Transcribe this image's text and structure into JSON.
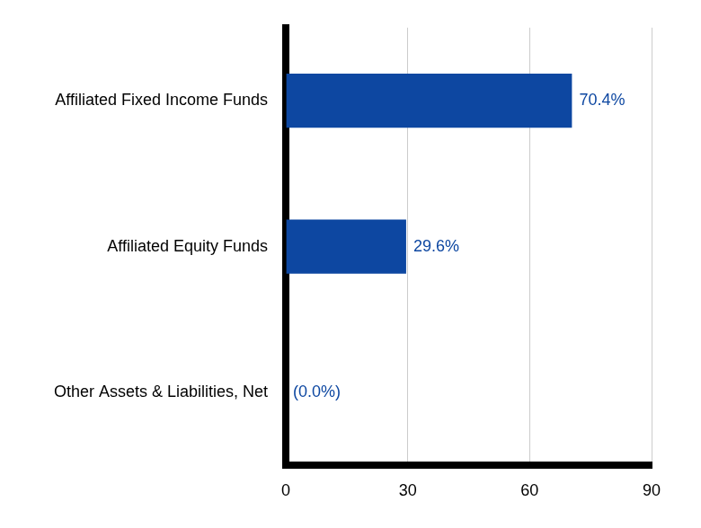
{
  "chart_data": {
    "type": "bar",
    "orientation": "horizontal",
    "categories": [
      "Affiliated Fixed Income Funds",
      "Affiliated Equity Funds",
      "Other Assets & Liabilities, Net"
    ],
    "values": [
      70.4,
      29.6,
      0.0
    ],
    "value_labels": [
      "70.4%",
      "29.6%",
      "(0.0%)"
    ],
    "data_labels": true,
    "color": "#0d47a1",
    "xlim": [
      0,
      90
    ],
    "xticks": [
      0,
      30,
      60,
      90
    ],
    "grid": true
  }
}
